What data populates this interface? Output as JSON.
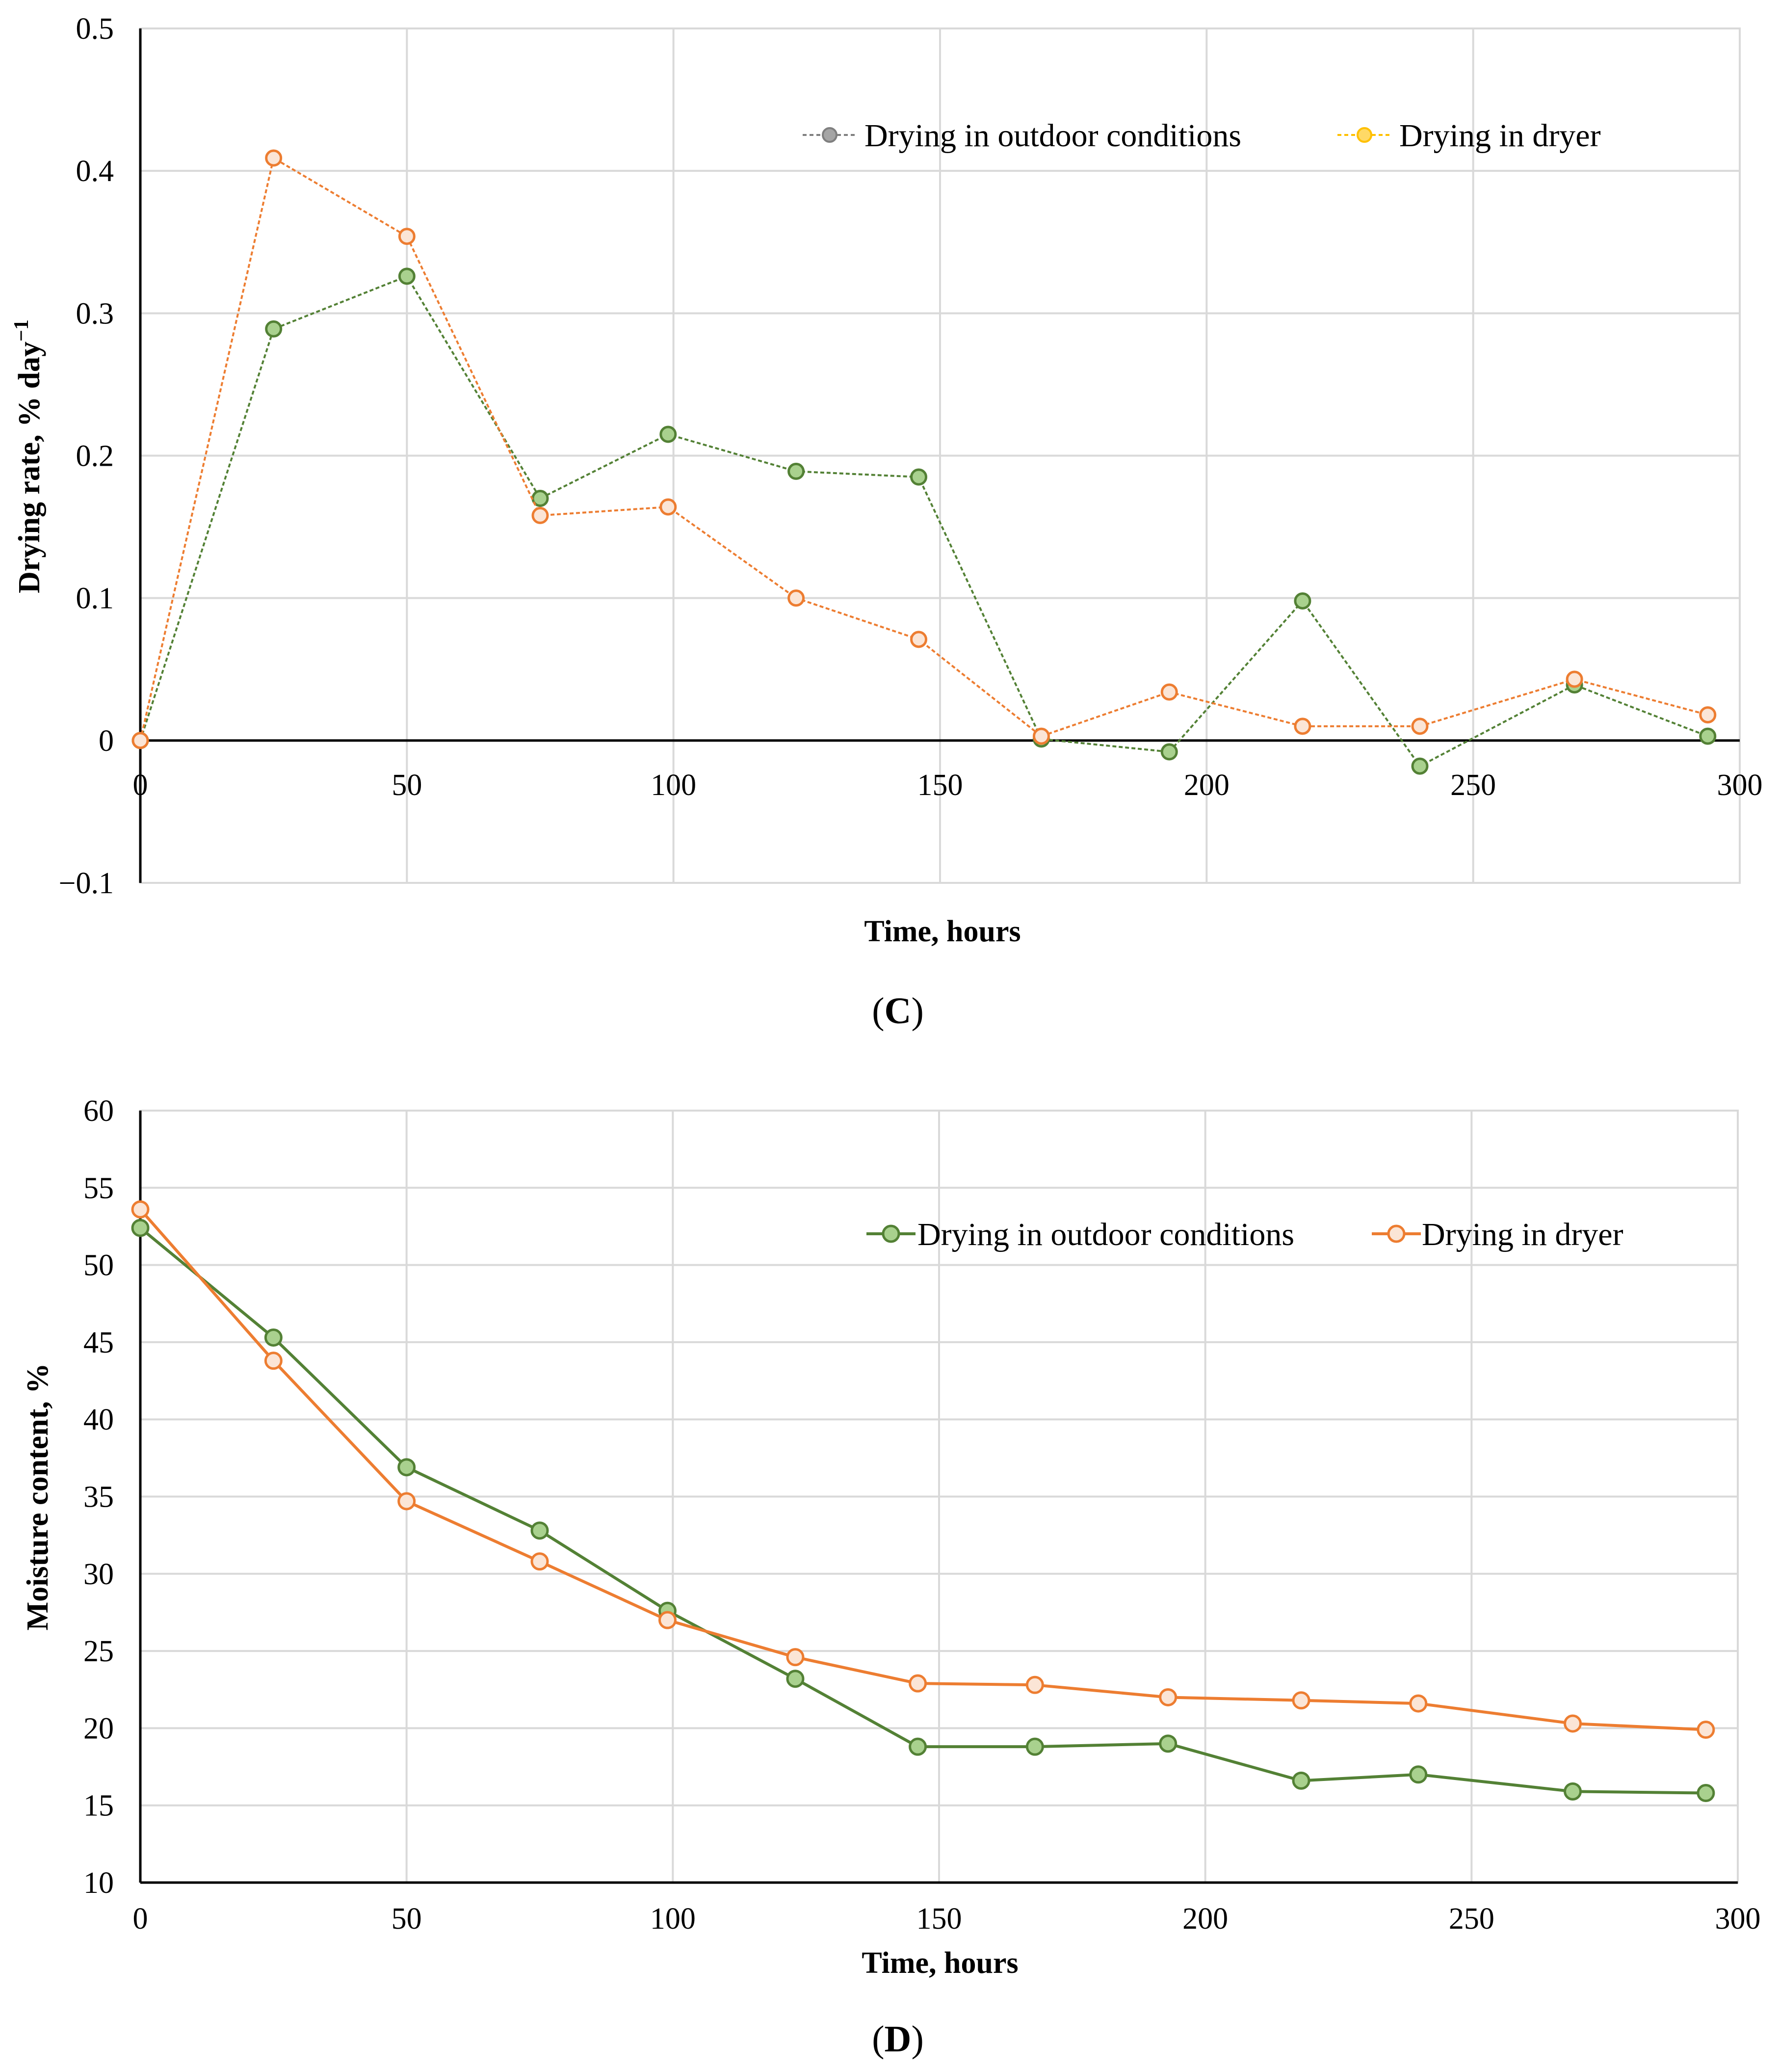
{
  "colors": {
    "outdoor_line": "#538135",
    "outdoor_marker_fill": "#a9d18e",
    "dryer_line": "#ed7d31",
    "dryer_marker_fill": "#fbe5d6",
    "legend_c_outdoor_line": "#7f7f7f",
    "legend_c_outdoor_marker": "#a5a5a5",
    "legend_c_dryer_line": "#ffc000",
    "legend_c_dryer_marker": "#ffd966"
  },
  "chart_data": [
    {
      "type": "line",
      "panel_label": "(C)",
      "xlabel": "Time, hours",
      "ylabel": "Drying rate, % day",
      "ylabel_superscript": "−1",
      "xlim": [
        0,
        300
      ],
      "ylim": [
        -0.1,
        0.5
      ],
      "x_ticks": [
        0,
        50,
        100,
        150,
        200,
        250,
        300
      ],
      "y_ticks": [
        -0.1,
        0,
        0.1,
        0.2,
        0.3,
        0.4,
        0.5
      ],
      "x_tick_labels": [
        "0",
        "50",
        "100",
        "150",
        "200",
        "250",
        "300"
      ],
      "y_tick_labels": [
        "−0.1",
        "0",
        "0.1",
        "0.2",
        "0.3",
        "0.4",
        "0.5"
      ],
      "legend_placement": "top-right",
      "grid": true,
      "series": [
        {
          "name": "Drying in outdoor conditions",
          "x": [
            0,
            25,
            50,
            75,
            99,
            123,
            146,
            169,
            193,
            218,
            240,
            269,
            294
          ],
          "values": [
            0,
            0.289,
            0.326,
            0.17,
            0.215,
            0.189,
            0.185,
            0.001,
            -0.008,
            0.098,
            -0.018,
            0.039,
            0.003
          ]
        },
        {
          "name": "Drying in dryer",
          "x": [
            0,
            25,
            50,
            75,
            99,
            123,
            146,
            169,
            193,
            218,
            240,
            269,
            294
          ],
          "values": [
            0,
            0.409,
            0.354,
            0.158,
            0.164,
            0.1,
            0.071,
            0.003,
            0.034,
            0.01,
            0.01,
            0.043,
            0.018
          ]
        }
      ]
    },
    {
      "type": "line",
      "panel_label": "(D)",
      "xlabel": "Time, hours",
      "ylabel": "Moisture content, %",
      "xlim": [
        0,
        300
      ],
      "ylim": [
        10,
        60
      ],
      "x_ticks": [
        0,
        50,
        100,
        150,
        200,
        250,
        300
      ],
      "y_ticks": [
        10,
        15,
        20,
        25,
        30,
        35,
        40,
        45,
        50,
        55,
        60
      ],
      "x_tick_labels": [
        "0",
        "50",
        "100",
        "150",
        "200",
        "250",
        "300"
      ],
      "y_tick_labels": [
        "10",
        "15",
        "20",
        "25",
        "30",
        "35",
        "40",
        "45",
        "50",
        "55",
        "60"
      ],
      "legend_placement": "top-right",
      "grid": true,
      "series": [
        {
          "name": "Drying in outdoor conditions",
          "x": [
            0,
            25,
            50,
            75,
            99,
            123,
            146,
            168,
            193,
            218,
            240,
            269,
            294
          ],
          "values": [
            52.4,
            45.3,
            36.9,
            32.8,
            27.6,
            23.2,
            18.8,
            18.8,
            19.0,
            16.6,
            17.0,
            15.9,
            15.8
          ]
        },
        {
          "name": "Drying in dryer",
          "x": [
            0,
            25,
            50,
            75,
            99,
            123,
            146,
            168,
            193,
            218,
            240,
            269,
            294
          ],
          "values": [
            53.6,
            43.8,
            34.7,
            30.8,
            27.0,
            24.6,
            22.9,
            22.8,
            22.0,
            21.8,
            21.6,
            20.3,
            19.9
          ]
        }
      ]
    }
  ]
}
